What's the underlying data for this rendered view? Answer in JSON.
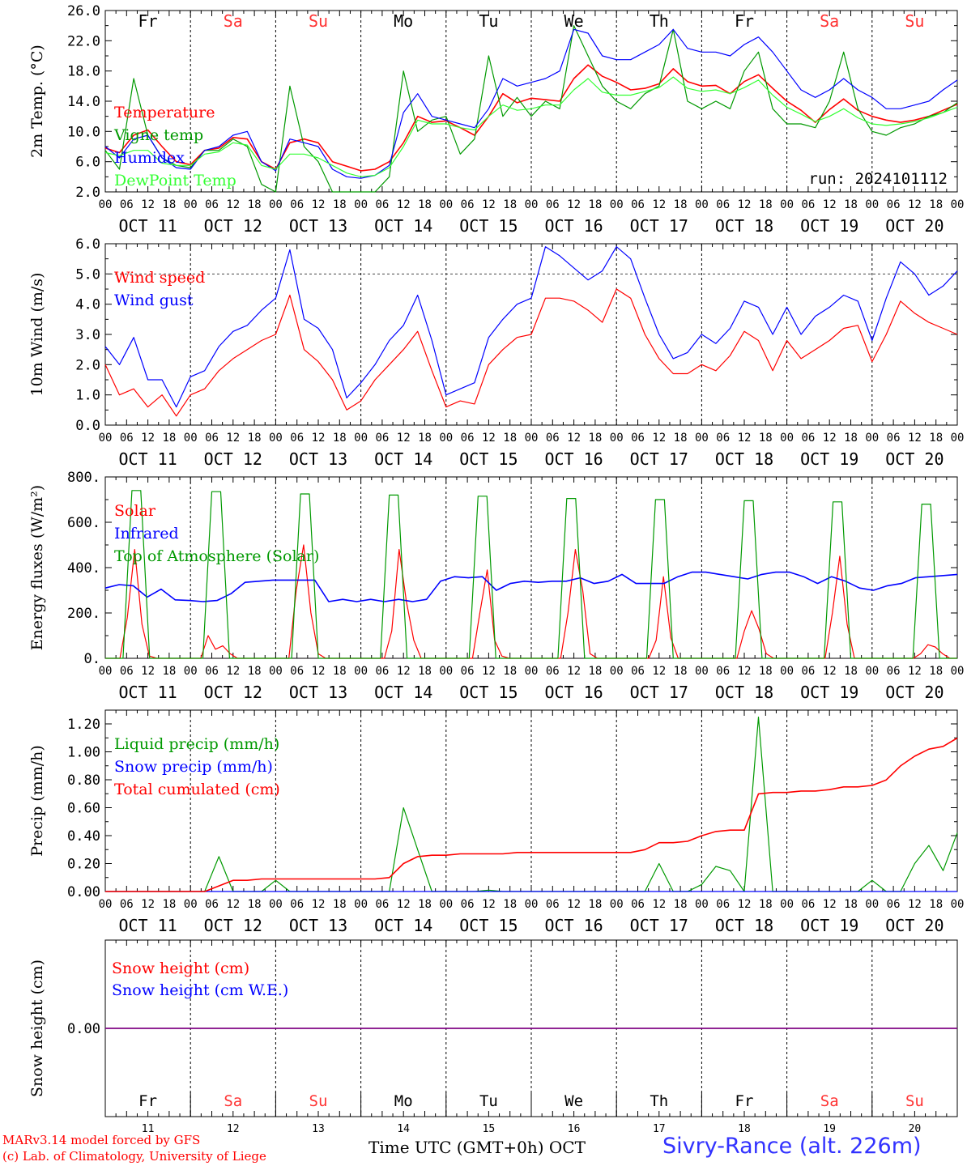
{
  "chart_data": [
    {
      "type": "line",
      "ylabel": "2m Temp. (°C)",
      "ylim": [
        2,
        26
      ],
      "yticks": [
        "2.0",
        "6.0",
        "10.0",
        "14.0",
        "18.0",
        "22.0",
        "26.0"
      ],
      "annotation": "run: 2024101112",
      "day_names": [
        "Fr",
        "Sa",
        "Su",
        "Mo",
        "Tu",
        "We",
        "Th",
        "Fr",
        "Sa",
        "Su"
      ],
      "weekend_color": "#ff3333",
      "hour_labels": [
        "00",
        "06",
        "12",
        "18"
      ],
      "day_labels": [
        "OCT 11",
        "OCT 12",
        "OCT 13",
        "OCT 14",
        "OCT 15",
        "OCT 16",
        "OCT 17",
        "OCT 18",
        "OCT 19",
        "OCT 20"
      ],
      "x_hours_step": 6,
      "series": [
        {
          "name": "Temperature",
          "color": "#ff0000",
          "values": [
            7.8,
            7.2,
            9.5,
            10.2,
            8,
            6,
            5.6,
            7.5,
            7.8,
            9.2,
            9,
            6,
            5,
            8.5,
            9,
            8.5,
            6,
            5.4,
            4.8,
            5,
            6,
            8.5,
            12,
            11.2,
            11.4,
            10.5,
            9.5,
            12,
            15,
            13.8,
            14.4,
            14.2,
            14,
            17,
            18.8,
            17.3,
            16.5,
            15.5,
            15.7,
            16.3,
            18.3,
            16.6,
            16,
            16.1,
            15,
            16.6,
            17.5,
            15.7,
            14,
            12.8,
            11.2,
            12.9,
            14.3,
            12.8,
            12,
            11.5,
            11.2,
            11.5,
            12,
            12.8,
            13.6
          ]
        },
        {
          "name": "Vigne temp",
          "color": "#009900",
          "values": [
            7.5,
            5,
            17,
            9.5,
            6.5,
            5.5,
            5.2,
            7.5,
            7.5,
            9,
            8,
            3,
            1.5,
            16,
            8,
            6,
            2,
            1,
            1,
            2,
            4,
            18,
            10,
            11.5,
            12,
            7,
            9,
            20,
            12,
            14.5,
            12,
            14,
            13,
            24,
            20,
            16,
            14,
            13,
            15,
            16,
            23.5,
            14,
            13,
            14,
            13,
            18,
            20.5,
            13,
            11,
            11,
            10.5,
            14,
            20.5,
            13,
            10,
            9.5,
            10.5,
            11,
            12,
            12.5,
            13.8
          ]
        },
        {
          "name": "Humidex",
          "color": "#0000ff",
          "values": [
            8,
            6.5,
            9,
            9.5,
            6.5,
            5.2,
            5,
            7.5,
            8,
            9.5,
            10,
            6,
            4.8,
            9,
            8.5,
            8,
            5,
            4,
            3.8,
            4.2,
            5.5,
            12.5,
            15,
            12,
            11.5,
            11,
            10.5,
            13,
            17,
            16,
            16.5,
            17,
            18,
            23.5,
            23,
            20,
            19.5,
            19.5,
            20.5,
            21.5,
            23.5,
            21,
            20.5,
            20.5,
            20,
            21.5,
            22.5,
            20.5,
            18,
            15.5,
            14.5,
            15.5,
            17,
            15.5,
            14.5,
            13,
            13,
            13.5,
            14,
            15.5,
            16.8
          ]
        },
        {
          "name": "DewPoint Temp",
          "color": "#33ff33",
          "values": [
            7.2,
            6.8,
            7.5,
            7.5,
            5.8,
            5.5,
            5.5,
            7,
            7.3,
            8.5,
            8.2,
            5.5,
            5,
            7,
            7,
            6.5,
            5.5,
            4.5,
            4,
            4.2,
            5.2,
            8,
            11.5,
            11,
            11,
            10.5,
            10.2,
            12,
            13.5,
            12.8,
            13,
            13.5,
            13.5,
            15.5,
            17,
            15.2,
            14.8,
            14.8,
            15.3,
            15.8,
            17.2,
            15.7,
            15.3,
            15.5,
            15,
            15.8,
            16.8,
            14.8,
            13.2,
            12.3,
            11.3,
            12,
            13,
            11.8,
            11,
            10.8,
            11,
            11.3,
            11.8,
            12.5,
            13.2
          ]
        }
      ]
    },
    {
      "type": "line",
      "ylabel": "10m Wind (m/s)",
      "ylim": [
        0,
        6
      ],
      "yticks": [
        "0.0",
        "1.0",
        "2.0",
        "3.0",
        "4.0",
        "5.0",
        "6.0"
      ],
      "ref_line": 5,
      "day_labels": [
        "OCT 11",
        "OCT 12",
        "OCT 13",
        "OCT 14",
        "OCT 15",
        "OCT 16",
        "OCT 17",
        "OCT 18",
        "OCT 19",
        "OCT 20"
      ],
      "hour_labels": [
        "00",
        "06",
        "12",
        "18"
      ],
      "series": [
        {
          "name": "Wind speed",
          "color": "#ff0000",
          "values": [
            2,
            1,
            1.2,
            0.6,
            1,
            0.3,
            1,
            1.2,
            1.8,
            2.2,
            2.5,
            2.8,
            3,
            4.3,
            2.5,
            2.1,
            1.5,
            0.5,
            0.8,
            1.5,
            2,
            2.5,
            3.1,
            1.8,
            0.6,
            0.8,
            0.7,
            2,
            2.5,
            2.9,
            3,
            4.2,
            4.2,
            4.1,
            3.8,
            3.4,
            4.5,
            4.2,
            3,
            2.2,
            1.7,
            1.7,
            2,
            1.8,
            2.3,
            3.1,
            2.8,
            1.8,
            2.8,
            2.2,
            2.5,
            2.8,
            3.2,
            3.3,
            2.1,
            3,
            4.1,
            3.7,
            3.4,
            3.2,
            3
          ]
        },
        {
          "name": "Wind gust",
          "color": "#0000ff",
          "values": [
            2.6,
            2,
            2.9,
            1.5,
            1.5,
            0.6,
            1.6,
            1.8,
            2.6,
            3.1,
            3.3,
            3.8,
            4.2,
            5.8,
            3.5,
            3.2,
            2.5,
            0.9,
            1.4,
            2,
            2.8,
            3.3,
            4.3,
            2.8,
            1,
            1.2,
            1.4,
            2.9,
            3.5,
            4,
            4.2,
            5.9,
            5.6,
            5.2,
            4.8,
            5.1,
            5.9,
            5.5,
            4.2,
            3,
            2.2,
            2.4,
            3,
            2.7,
            3.2,
            4.1,
            3.9,
            3,
            3.9,
            3,
            3.6,
            3.9,
            4.3,
            4.1,
            2.8,
            4.2,
            5.4,
            5,
            4.3,
            4.6,
            5.1
          ]
        }
      ]
    },
    {
      "type": "line",
      "ylabel": "Energy fluxes (W/m²)",
      "ylim": [
        0,
        800
      ],
      "yticks": [
        "0.",
        "200.",
        "400.",
        "600.",
        "800."
      ],
      "day_labels": [
        "OCT 11",
        "OCT 12",
        "OCT 13",
        "OCT 14",
        "OCT 15",
        "OCT 16",
        "OCT 17",
        "OCT 18",
        "OCT 19",
        "OCT 20"
      ],
      "hour_labels": [
        "00",
        "06",
        "12",
        "18"
      ],
      "series": [
        {
          "name": "Solar",
          "color": "#ff0000",
          "values": [
            0,
            0,
            0,
            180,
            480,
            150,
            10,
            0,
            0,
            0,
            0,
            0,
            0,
            0,
            100,
            40,
            55,
            20,
            0,
            0,
            0,
            0,
            0,
            0,
            0,
            0,
            300,
            500,
            200,
            20,
            0,
            0,
            0,
            0,
            0,
            0,
            0,
            0,
            0,
            120,
            480,
            250,
            80,
            0,
            0,
            0,
            0,
            0,
            0,
            0,
            0,
            200,
            390,
            80,
            10,
            0,
            0,
            0,
            0,
            0,
            0,
            0,
            0,
            200,
            480,
            300,
            20,
            0,
            0,
            0,
            0,
            0,
            0,
            0,
            0,
            80,
            360,
            90,
            0,
            0,
            0,
            0,
            0,
            0,
            0,
            0,
            0,
            120,
            210,
            130,
            20,
            0,
            0,
            0,
            0,
            0,
            0,
            0,
            0,
            200,
            450,
            150,
            0,
            0,
            0,
            0,
            0,
            0,
            0,
            0,
            0,
            20,
            60,
            50,
            20,
            0,
            0
          ]
        },
        {
          "name": "Infrared",
          "color": "#0000ff",
          "values": [
            310,
            325,
            320,
            270,
            305,
            258,
            255,
            250,
            255,
            285,
            335,
            340,
            345,
            345,
            345,
            345,
            250,
            260,
            250,
            260,
            250,
            260,
            250,
            260,
            340,
            360,
            355,
            360,
            300,
            330,
            340,
            335,
            340,
            340,
            355,
            330,
            340,
            370,
            330,
            330,
            330,
            360,
            380,
            380,
            370,
            360,
            350,
            370,
            380,
            380,
            360,
            330,
            360,
            340,
            310,
            300,
            320,
            330,
            355,
            360,
            365,
            370
          ]
        },
        {
          "name": "Top of Atmosphere (Solar)",
          "color": "#009900",
          "values": [
            0,
            0,
            0,
            740,
            740,
            0,
            0,
            0,
            0,
            0,
            0,
            0,
            735,
            735,
            0,
            0,
            0,
            0,
            0,
            0,
            0,
            0,
            725,
            725,
            0,
            0,
            0,
            0,
            0,
            0,
            0,
            0,
            720,
            720,
            0,
            0,
            0,
            0,
            0,
            0,
            0,
            0,
            715,
            715,
            0,
            0,
            0,
            0,
            0,
            0,
            0,
            0,
            705,
            705,
            0,
            0,
            0,
            0,
            0,
            0,
            0,
            0,
            700,
            700,
            0,
            0,
            0,
            0,
            0,
            0,
            0,
            0,
            695,
            695,
            0,
            0,
            0,
            0,
            0,
            0,
            0,
            0,
            690,
            690,
            0,
            0,
            0,
            0,
            0,
            0,
            0,
            0,
            680,
            680,
            0,
            0,
            0
          ]
        }
      ]
    },
    {
      "type": "line",
      "ylabel": "Precip (mm/h)",
      "ylim": [
        0,
        1.3
      ],
      "yticks": [
        "0.00",
        "0.20",
        "0.40",
        "0.60",
        "0.80",
        "1.00",
        "1.20"
      ],
      "day_labels": [
        "OCT 11",
        "OCT 12",
        "OCT 13",
        "OCT 14",
        "OCT 15",
        "OCT 16",
        "OCT 17",
        "OCT 18",
        "OCT 19",
        "OCT 20"
      ],
      "hour_labels": [
        "00",
        "06",
        "12",
        "18"
      ],
      "series": [
        {
          "name": "Liquid precip (mm/h)",
          "color": "#009900",
          "values": [
            0,
            0,
            0,
            0,
            0,
            0,
            0,
            0,
            0.25,
            0,
            0,
            0,
            0.08,
            0,
            0,
            0,
            0,
            0,
            0,
            0,
            0,
            0.6,
            0.3,
            0,
            0,
            0,
            0,
            0.01,
            0,
            0,
            0,
            0,
            0,
            0,
            0,
            0,
            0,
            0,
            0,
            0.2,
            0,
            0,
            0.05,
            0.18,
            0.15,
            0,
            1.25,
            0,
            0,
            0,
            0,
            0,
            0,
            0,
            0.08,
            0,
            0,
            0.2,
            0.33,
            0.15,
            0.42
          ]
        },
        {
          "name": "Snow precip (mm/h)",
          "color": "#0000ff",
          "values": [
            0,
            0,
            0,
            0,
            0,
            0,
            0,
            0,
            0,
            0,
            0,
            0,
            0,
            0,
            0,
            0,
            0,
            0,
            0,
            0,
            0,
            0,
            0,
            0,
            0,
            0,
            0,
            0,
            0,
            0,
            0,
            0,
            0,
            0,
            0,
            0,
            0,
            0,
            0,
            0,
            0,
            0,
            0,
            0,
            0,
            0,
            0,
            0,
            0,
            0,
            0,
            0,
            0,
            0,
            0,
            0,
            0,
            0,
            0,
            0,
            0
          ]
        },
        {
          "name": "Total cumulated (cm)",
          "color": "#ff0000",
          "values": [
            0,
            0,
            0,
            0,
            0,
            0,
            0,
            0,
            0.04,
            0.08,
            0.08,
            0.09,
            0.09,
            0.09,
            0.09,
            0.09,
            0.09,
            0.09,
            0.09,
            0.09,
            0.1,
            0.2,
            0.25,
            0.26,
            0.26,
            0.27,
            0.27,
            0.27,
            0.27,
            0.28,
            0.28,
            0.28,
            0.28,
            0.28,
            0.28,
            0.28,
            0.28,
            0.28,
            0.3,
            0.35,
            0.35,
            0.36,
            0.4,
            0.43,
            0.44,
            0.44,
            0.7,
            0.71,
            0.71,
            0.72,
            0.72,
            0.73,
            0.75,
            0.75,
            0.76,
            0.8,
            0.9,
            0.97,
            1.02,
            1.04,
            1.1
          ]
        }
      ]
    },
    {
      "type": "line",
      "ylabel": "Snow height (cm)",
      "ylim": [
        -1,
        1
      ],
      "yticks": [
        "0.00"
      ],
      "day_names": [
        "Fr",
        "Sa",
        "Su",
        "Mo",
        "Tu",
        "We",
        "Th",
        "Fr",
        "Sa",
        "Su"
      ],
      "day_numbers": [
        "11",
        "12",
        "13",
        "14",
        "15",
        "16",
        "17",
        "18",
        "19",
        "20"
      ],
      "series": [
        {
          "name": "Snow height (cm)",
          "color": "#ff0000",
          "values": [
            0,
            0
          ]
        },
        {
          "name": "Snow height (cm W.E.)",
          "color": "#0000ff",
          "values": [
            0,
            0
          ]
        }
      ]
    }
  ],
  "footer": {
    "credit_line1": "MARv3.14 model forced by GFS",
    "credit_line2": "(c) Lab. of Climatology, University of Liege",
    "xlabel": "Time UTC (GMT+0h) OCT",
    "station": "Sivry-Rance (alt. 226m)"
  }
}
